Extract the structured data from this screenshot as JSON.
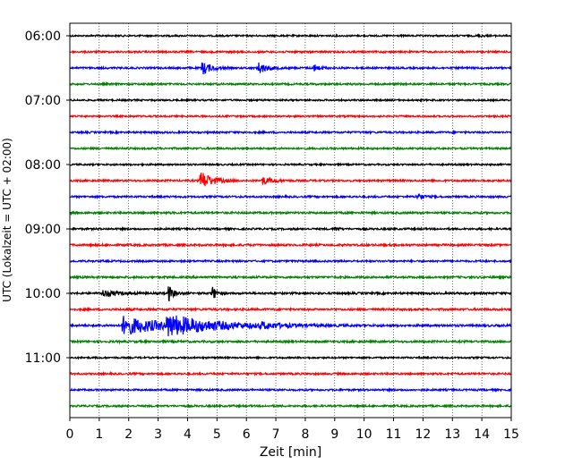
{
  "chart_data": {
    "type": "line",
    "title": "",
    "xlabel": "Zeit  [min]",
    "ylabel": "UTC (Lokalzeit = UTC + 02:00)",
    "xlim": [
      0,
      15
    ],
    "x_ticks": [
      "0",
      "1",
      "2",
      "3",
      "4",
      "5",
      "6",
      "7",
      "8",
      "9",
      "10",
      "11",
      "12",
      "13",
      "14",
      "15"
    ],
    "y_ticks": [
      {
        "label": "06:00",
        "trace": 0
      },
      {
        "label": "07:00",
        "trace": 4
      },
      {
        "label": "08:00",
        "trace": 8
      },
      {
        "label": "09:00",
        "trace": 12
      },
      {
        "label": "10:00",
        "trace": 16
      },
      {
        "label": "11:00",
        "trace": 20
      }
    ],
    "grid": "vertical-dotted",
    "color_cycle": [
      "#000000",
      "#ff0000",
      "#0000ff",
      "#008000"
    ],
    "trace_interval_minutes": 15,
    "traces": [
      {
        "start": "06:00",
        "noise": 0.9,
        "events": [
          {
            "x": 13.9,
            "amp": 1.6,
            "dur": 0.15
          }
        ]
      },
      {
        "start": "06:15",
        "noise": 1.0,
        "events": []
      },
      {
        "start": "06:30",
        "noise": 1.0,
        "events": [
          {
            "x": 4.5,
            "amp": 7.5,
            "dur": 0.28
          },
          {
            "x": 6.4,
            "amp": 6.5,
            "dur": 0.28
          },
          {
            "x": 8.25,
            "amp": 4.5,
            "dur": 0.2
          }
        ]
      },
      {
        "start": "06:45",
        "noise": 1.0,
        "events": []
      },
      {
        "start": "07:00",
        "noise": 0.9,
        "events": []
      },
      {
        "start": "07:15",
        "noise": 0.9,
        "events": []
      },
      {
        "start": "07:30",
        "noise": 1.0,
        "events": []
      },
      {
        "start": "07:45",
        "noise": 1.0,
        "events": []
      },
      {
        "start": "08:00",
        "noise": 0.9,
        "events": []
      },
      {
        "start": "08:15",
        "noise": 1.0,
        "events": [
          {
            "x": 4.45,
            "amp": 11.0,
            "dur": 0.35
          },
          {
            "x": 6.55,
            "amp": 4.5,
            "dur": 0.3
          }
        ]
      },
      {
        "start": "08:30",
        "noise": 1.0,
        "events": [
          {
            "x": 11.8,
            "amp": 4.0,
            "dur": 0.2
          }
        ]
      },
      {
        "start": "08:45",
        "noise": 1.1,
        "events": []
      },
      {
        "start": "09:00",
        "noise": 1.0,
        "events": [
          {
            "x": 9.0,
            "amp": 2.5,
            "dur": 0.1
          }
        ]
      },
      {
        "start": "09:15",
        "noise": 1.1,
        "events": []
      },
      {
        "start": "09:30",
        "noise": 1.0,
        "events": []
      },
      {
        "start": "09:45",
        "noise": 1.1,
        "events": []
      },
      {
        "start": "10:00",
        "noise": 1.1,
        "events": [
          {
            "x": 1.1,
            "amp": 3.5,
            "dur": 0.5
          },
          {
            "x": 3.35,
            "amp": 9.5,
            "dur": 0.15
          },
          {
            "x": 4.85,
            "amp": 8.0,
            "dur": 0.12
          }
        ]
      },
      {
        "start": "10:15",
        "noise": 1.1,
        "events": []
      },
      {
        "start": "10:30",
        "noise": 1.2,
        "events": [
          {
            "x": 1.8,
            "amp": 10.0,
            "dur": 1.4
          },
          {
            "x": 3.3,
            "amp": 13.0,
            "dur": 1.5
          },
          {
            "x": 6.5,
            "amp": 4.0,
            "dur": 0.8
          }
        ]
      },
      {
        "start": "10:45",
        "noise": 1.1,
        "events": []
      },
      {
        "start": "11:00",
        "noise": 0.9,
        "events": []
      },
      {
        "start": "11:15",
        "noise": 1.0,
        "events": []
      },
      {
        "start": "11:30",
        "noise": 1.0,
        "events": []
      },
      {
        "start": "11:45",
        "noise": 1.0,
        "events": []
      }
    ]
  }
}
